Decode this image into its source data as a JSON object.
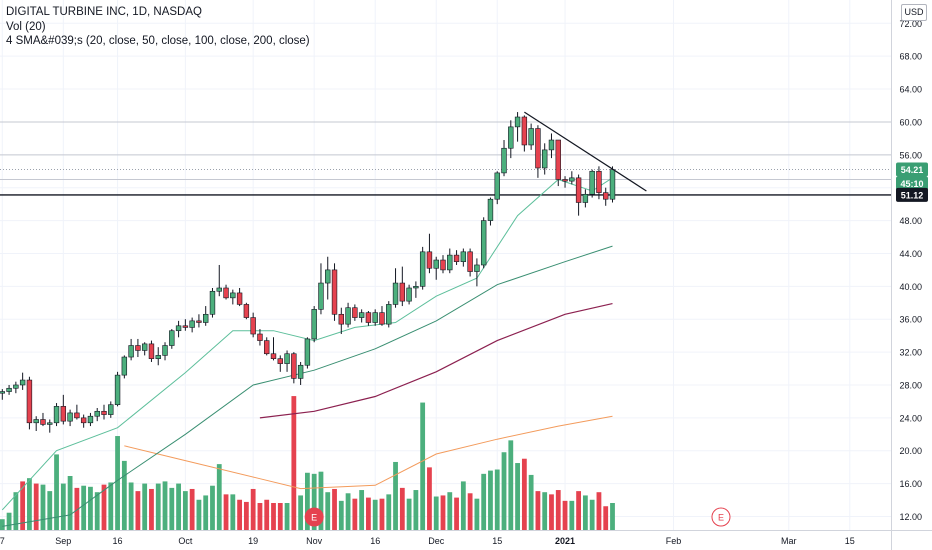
{
  "header": {
    "title": "DIGITAL TURBINE INC, 1D, NASDAQ",
    "vol_label": "Vol (20)",
    "sma_label": "4 SMA&#039;s (20, close, 50, close, 100, close, 200, close)",
    "currency": "USD"
  },
  "earnings_marker_label": "E",
  "colors": {
    "up": "#4caf7d",
    "down": "#e5424f",
    "sma20": "#5dbf9b",
    "sma50": "#3a8f72",
    "sma100": "#8c2150",
    "sma200": "#f39b5c",
    "trendline": "#131722",
    "price_tag_current": "#3a9e73",
    "price_tag_crosshair": "#131722",
    "earnings": "#e5424f"
  },
  "chart_data": {
    "type": "candlestick",
    "title": "DIGITAL TURBINE INC, 1D, NASDAQ",
    "y_ticks": [
      "12.00",
      "16.00",
      "20.00",
      "24.00",
      "28.00",
      "32.00",
      "36.00",
      "40.00",
      "44.00",
      "48.00",
      "52.00",
      "56.00",
      "60.00",
      "64.00",
      "68.00",
      "72.00"
    ],
    "y_tick_values": [
      12,
      16,
      20,
      24,
      28,
      32,
      36,
      40,
      44,
      48,
      52,
      56,
      60,
      64,
      68,
      72
    ],
    "ylim": [
      10.5,
      74
    ],
    "x_ticks": [
      "7",
      "Sep",
      "16",
      "Oct",
      "19",
      "Nov",
      "16",
      "Dec",
      "15",
      "2021",
      "Feb",
      "Mar",
      "15"
    ],
    "x_tick_bars": [
      0,
      9,
      17,
      27,
      37,
      46,
      55,
      64,
      73,
      83,
      99,
      116,
      125
    ],
    "bold_x_ticks": [
      "2021"
    ],
    "candles": [
      [
        27.0,
        27.5,
        26.2,
        27.2
      ],
      [
        27.2,
        28.0,
        26.8,
        27.6
      ],
      [
        27.6,
        28.4,
        27.0,
        28.0
      ],
      [
        28.0,
        29.5,
        27.4,
        28.6
      ],
      [
        28.6,
        29.0,
        22.6,
        23.4
      ],
      [
        23.4,
        24.2,
        22.4,
        23.8
      ],
      [
        23.8,
        24.6,
        23.0,
        23.2
      ],
      [
        23.2,
        23.8,
        22.2,
        23.4
      ],
      [
        23.4,
        25.8,
        23.0,
        25.4
      ],
      [
        25.4,
        26.8,
        23.2,
        23.6
      ],
      [
        23.6,
        25.0,
        23.0,
        24.6
      ],
      [
        24.6,
        25.6,
        23.8,
        24.0
      ],
      [
        24.0,
        24.4,
        22.8,
        23.4
      ],
      [
        23.4,
        24.6,
        23.0,
        24.2
      ],
      [
        24.2,
        25.2,
        23.6,
        24.8
      ],
      [
        24.8,
        25.6,
        23.8,
        24.4
      ],
      [
        24.4,
        26.0,
        24.0,
        25.6
      ],
      [
        25.6,
        29.6,
        25.4,
        29.2
      ],
      [
        29.2,
        31.6,
        28.8,
        31.4
      ],
      [
        31.4,
        33.6,
        31.0,
        32.8
      ],
      [
        32.8,
        33.6,
        31.4,
        32.2
      ],
      [
        32.2,
        33.2,
        31.6,
        33.0
      ],
      [
        33.0,
        33.4,
        30.8,
        31.2
      ],
      [
        31.2,
        32.6,
        30.4,
        31.6
      ],
      [
        31.6,
        33.2,
        31.0,
        32.8
      ],
      [
        32.8,
        34.8,
        32.4,
        34.6
      ],
      [
        34.6,
        35.8,
        33.8,
        35.2
      ],
      [
        35.2,
        36.0,
        34.6,
        35.0
      ],
      [
        35.0,
        36.2,
        34.4,
        35.8
      ],
      [
        35.8,
        36.6,
        35.0,
        35.6
      ],
      [
        35.6,
        37.6,
        35.2,
        36.6
      ],
      [
        36.6,
        39.8,
        36.2,
        39.4
      ],
      [
        39.4,
        42.6,
        38.8,
        39.8
      ],
      [
        39.8,
        40.2,
        38.4,
        38.6
      ],
      [
        38.6,
        39.6,
        37.8,
        39.2
      ],
      [
        39.2,
        39.8,
        37.6,
        37.8
      ],
      [
        37.8,
        38.0,
        36.0,
        36.2
      ],
      [
        36.2,
        36.8,
        33.8,
        34.2
      ],
      [
        34.2,
        34.8,
        32.8,
        33.4
      ],
      [
        33.4,
        33.8,
        31.6,
        31.8
      ],
      [
        31.8,
        33.8,
        31.0,
        31.2
      ],
      [
        31.2,
        31.6,
        29.6,
        30.6
      ],
      [
        30.6,
        32.2,
        29.6,
        31.8
      ],
      [
        31.8,
        32.0,
        28.2,
        28.8
      ],
      [
        28.8,
        30.8,
        28.0,
        30.4
      ],
      [
        30.4,
        33.8,
        30.0,
        33.6
      ],
      [
        33.6,
        37.6,
        33.2,
        37.2
      ],
      [
        37.2,
        42.8,
        36.6,
        40.4
      ],
      [
        40.4,
        43.6,
        38.4,
        42.0
      ],
      [
        42.0,
        42.8,
        35.8,
        36.6
      ],
      [
        36.6,
        37.4,
        34.2,
        35.4
      ],
      [
        35.4,
        38.0,
        35.0,
        37.4
      ],
      [
        37.4,
        37.8,
        35.8,
        36.2
      ],
      [
        36.2,
        37.2,
        35.6,
        36.8
      ],
      [
        36.8,
        37.0,
        35.2,
        35.6
      ],
      [
        35.6,
        37.2,
        35.2,
        36.8
      ],
      [
        36.8,
        37.6,
        35.2,
        35.4
      ],
      [
        35.4,
        38.2,
        35.0,
        37.8
      ],
      [
        37.8,
        42.2,
        37.4,
        40.4
      ],
      [
        40.4,
        42.4,
        37.6,
        38.2
      ],
      [
        38.2,
        40.2,
        37.8,
        39.8
      ],
      [
        39.8,
        40.6,
        38.6,
        40.0
      ],
      [
        40.0,
        44.8,
        39.6,
        44.2
      ],
      [
        44.2,
        46.4,
        41.6,
        42.2
      ],
      [
        42.2,
        43.6,
        40.8,
        43.2
      ],
      [
        43.2,
        43.8,
        41.6,
        42.0
      ],
      [
        42.0,
        44.6,
        41.6,
        43.8
      ],
      [
        43.8,
        44.4,
        42.6,
        43.0
      ],
      [
        43.0,
        44.6,
        42.4,
        44.2
      ],
      [
        44.2,
        44.6,
        41.2,
        41.8
      ],
      [
        41.8,
        43.4,
        40.0,
        42.6
      ],
      [
        42.6,
        48.4,
        42.2,
        48.0
      ],
      [
        48.0,
        50.8,
        47.4,
        50.6
      ],
      [
        50.6,
        54.0,
        50.0,
        53.8
      ],
      [
        53.8,
        57.8,
        53.4,
        56.8
      ],
      [
        56.8,
        60.2,
        55.6,
        59.4
      ],
      [
        59.4,
        61.2,
        57.6,
        60.6
      ],
      [
        60.6,
        60.8,
        56.4,
        57.2
      ],
      [
        57.2,
        59.8,
        56.6,
        59.2
      ],
      [
        59.2,
        59.6,
        53.2,
        54.4
      ],
      [
        54.4,
        57.4,
        53.6,
        56.6
      ],
      [
        56.6,
        58.6,
        55.6,
        57.8
      ],
      [
        57.8,
        57.8,
        52.2,
        53.0
      ],
      [
        53.0,
        53.4,
        52.0,
        52.8
      ],
      [
        52.8,
        54.0,
        52.4,
        53.2
      ],
      [
        53.2,
        53.6,
        48.6,
        50.2
      ],
      [
        50.2,
        51.8,
        49.6,
        51.2
      ],
      [
        51.2,
        54.2,
        50.8,
        54.0
      ],
      [
        54.0,
        54.6,
        50.6,
        51.4
      ],
      [
        51.4,
        52.0,
        49.8,
        50.6
      ],
      [
        50.6,
        54.6,
        50.2,
        54.2
      ]
    ],
    "volume": [
      [
        1.0,
        "up"
      ],
      [
        1.6,
        "up"
      ],
      [
        3.5,
        "up"
      ],
      [
        4.5,
        "down"
      ],
      [
        4.8,
        "up"
      ],
      [
        4.3,
        "down"
      ],
      [
        4.2,
        "up"
      ],
      [
        3.6,
        "up"
      ],
      [
        7.0,
        "up"
      ],
      [
        4.3,
        "up"
      ],
      [
        5.0,
        "up"
      ],
      [
        3.9,
        "down"
      ],
      [
        4.1,
        "up"
      ],
      [
        4.0,
        "up"
      ],
      [
        3.5,
        "up"
      ],
      [
        4.2,
        "down"
      ],
      [
        4.4,
        "up"
      ],
      [
        8.7,
        "up"
      ],
      [
        6.4,
        "up"
      ],
      [
        4.4,
        "up"
      ],
      [
        3.6,
        "down"
      ],
      [
        4.3,
        "up"
      ],
      [
        3.8,
        "down"
      ],
      [
        4.3,
        "up"
      ],
      [
        4.5,
        "up"
      ],
      [
        3.9,
        "up"
      ],
      [
        4.3,
        "up"
      ],
      [
        3.6,
        "up"
      ],
      [
        3.8,
        "down"
      ],
      [
        2.8,
        "up"
      ],
      [
        3.2,
        "up"
      ],
      [
        4.1,
        "up"
      ],
      [
        6.1,
        "up"
      ],
      [
        3.3,
        "down"
      ],
      [
        3.3,
        "up"
      ],
      [
        2.8,
        "down"
      ],
      [
        2.6,
        "down"
      ],
      [
        3.8,
        "down"
      ],
      [
        2.5,
        "down"
      ],
      [
        2.8,
        "down"
      ],
      [
        2.5,
        "down"
      ],
      [
        2.5,
        "down"
      ],
      [
        2.5,
        "up"
      ],
      [
        12.4,
        "down"
      ],
      [
        3.2,
        "up"
      ],
      [
        5.3,
        "up"
      ],
      [
        5.2,
        "up"
      ],
      [
        5.4,
        "up"
      ],
      [
        3.5,
        "up"
      ],
      [
        3.8,
        "down"
      ],
      [
        2.7,
        "up"
      ],
      [
        3.4,
        "up"
      ],
      [
        2.9,
        "down"
      ],
      [
        3.7,
        "up"
      ],
      [
        3.0,
        "down"
      ],
      [
        2.8,
        "up"
      ],
      [
        2.9,
        "down"
      ],
      [
        3.3,
        "up"
      ],
      [
        6.3,
        "up"
      ],
      [
        3.9,
        "down"
      ],
      [
        2.9,
        "up"
      ],
      [
        3.7,
        "up"
      ],
      [
        11.8,
        "up"
      ],
      [
        5.8,
        "down"
      ],
      [
        3.1,
        "up"
      ],
      [
        3.2,
        "down"
      ],
      [
        3.5,
        "up"
      ],
      [
        3.0,
        "down"
      ],
      [
        4.5,
        "up"
      ],
      [
        3.4,
        "down"
      ],
      [
        2.9,
        "up"
      ],
      [
        5.2,
        "up"
      ],
      [
        5.5,
        "up"
      ],
      [
        5.6,
        "up"
      ],
      [
        7.2,
        "up"
      ],
      [
        8.3,
        "up"
      ],
      [
        6.2,
        "up"
      ],
      [
        6.6,
        "down"
      ],
      [
        5.1,
        "up"
      ],
      [
        3.6,
        "down"
      ],
      [
        3.5,
        "up"
      ],
      [
        3.3,
        "down"
      ],
      [
        3.7,
        "down"
      ],
      [
        2.7,
        "down"
      ],
      [
        2.7,
        "up"
      ],
      [
        3.6,
        "down"
      ],
      [
        3.2,
        "up"
      ],
      [
        2.8,
        "up"
      ],
      [
        3.5,
        "down"
      ],
      [
        2.2,
        "down"
      ],
      [
        2.5,
        "up"
      ]
    ],
    "sma20": [
      [
        0,
        12.8
      ],
      [
        8,
        20.0
      ],
      [
        17,
        22.8
      ],
      [
        27,
        29.5
      ],
      [
        34,
        34.6
      ],
      [
        40,
        34.6
      ],
      [
        46,
        33.4
      ],
      [
        52,
        35.0
      ],
      [
        58,
        35.6
      ],
      [
        64,
        38.8
      ],
      [
        70,
        41.0
      ],
      [
        76,
        48.6
      ],
      [
        82,
        53.0
      ],
      [
        87,
        51.6
      ],
      [
        90,
        53.2
      ]
    ],
    "sma50": [
      [
        0,
        10.8
      ],
      [
        10,
        12.2
      ],
      [
        17,
        16.4
      ],
      [
        27,
        22.0
      ],
      [
        37,
        28.0
      ],
      [
        46,
        29.8
      ],
      [
        55,
        32.4
      ],
      [
        64,
        35.8
      ],
      [
        73,
        40.2
      ],
      [
        83,
        43.0
      ],
      [
        90,
        44.9
      ]
    ],
    "sma100": [
      [
        38,
        24.0
      ],
      [
        46,
        24.8
      ],
      [
        55,
        26.6
      ],
      [
        64,
        29.6
      ],
      [
        73,
        33.4
      ],
      [
        83,
        36.6
      ],
      [
        90,
        37.9
      ]
    ],
    "sma200": [
      [
        18,
        20.6
      ],
      [
        26,
        19.0
      ],
      [
        38,
        16.6
      ],
      [
        44,
        15.4
      ],
      [
        55,
        15.8
      ],
      [
        64,
        19.6
      ],
      [
        73,
        21.4
      ],
      [
        82,
        23.0
      ],
      [
        90,
        24.2
      ]
    ],
    "trendline": [
      [
        77,
        61.2
      ],
      [
        95,
        51.6
      ]
    ],
    "horizontal_lines": [
      56.0,
      60.0,
      53.0
    ],
    "crosshair_price": 51.12,
    "dotted_price": 54.21,
    "price_tags": [
      "54.21",
      "45:10",
      "51.12"
    ],
    "earnings_bars": [
      46,
      106
    ]
  }
}
